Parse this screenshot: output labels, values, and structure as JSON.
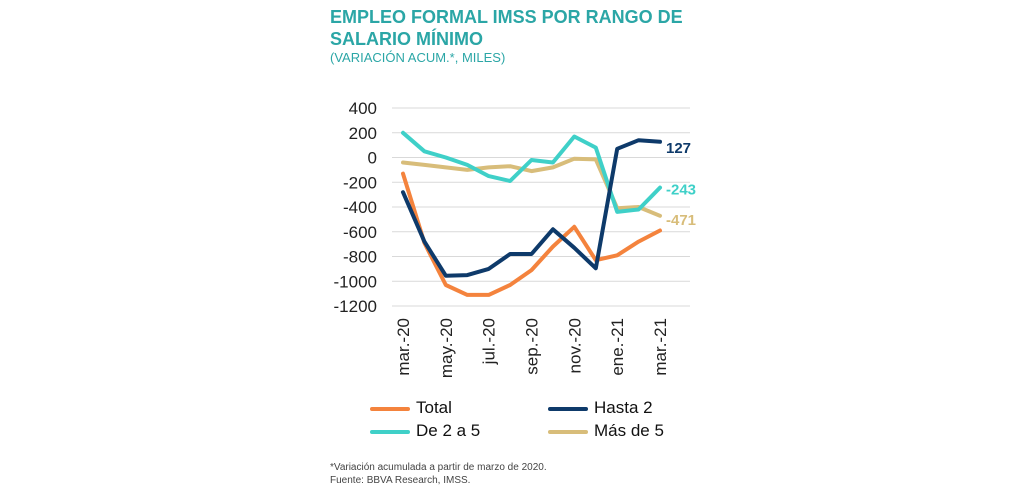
{
  "header": {
    "title": "EMPLEO FORMAL IMSS POR RANGO DE SALARIO MÍNIMO",
    "subtitle": "(VARIACIÓN ACUM.*, MILES)"
  },
  "footer": {
    "note": "*Variación acumulada a partir de marzo de 2020.",
    "source": "Fuente: BBVA Research, IMSS."
  },
  "chart_data": {
    "type": "line",
    "title": "EMPLEO FORMAL IMSS POR RANGO DE SALARIO MÍNIMO",
    "subtitle": "(VARIACIÓN ACUM.*, MILES)",
    "ylim": [
      -1200,
      400
    ],
    "yticks": [
      400,
      200,
      0,
      -200,
      -400,
      -600,
      -800,
      -1000,
      -1200
    ],
    "ytick_labels": [
      "400",
      "200",
      "0",
      "-200",
      "-400",
      "-600",
      "-800",
      "-1000",
      "-1200"
    ],
    "x": [
      "mar.-20",
      "abr.-20",
      "may.-20",
      "jun.-20",
      "jul.-20",
      "ago.-20",
      "sep.-20",
      "oct.-20",
      "nov.-20",
      "dic.-20",
      "ene.-21",
      "feb.-21",
      "mar.-21"
    ],
    "xtick_labels": [
      "mar.-20",
      "may.-20",
      "jul.-20",
      "sep.-20",
      "nov.-20",
      "ene.-21",
      "mar.-21"
    ],
    "grid": true,
    "legend_position": "bottom",
    "series": [
      {
        "name": "Total",
        "color": "#f4833d",
        "values": [
          -130,
          -690,
          -1030,
          -1110,
          -1110,
          -1030,
          -910,
          -720,
          -560,
          -830,
          -790,
          -680,
          -590
        ]
      },
      {
        "name": "Hasta 2",
        "color": "#0e3a6a",
        "values": [
          -280,
          -680,
          -955,
          -950,
          -900,
          -780,
          -780,
          -580,
          -730,
          -895,
          70,
          140,
          127
        ],
        "end_label": "127"
      },
      {
        "name": "De 2 a 5",
        "color": "#3fd0c8",
        "values": [
          200,
          50,
          0,
          -60,
          -150,
          -190,
          -20,
          -40,
          170,
          80,
          -440,
          -420,
          -243
        ],
        "end_label": "-243"
      },
      {
        "name": "Más de 5",
        "color": "#d8bd7a",
        "values": [
          -40,
          -60,
          -80,
          -100,
          -80,
          -70,
          -110,
          -80,
          -10,
          -15,
          -410,
          -400,
          -471
        ],
        "end_label": "-471"
      }
    ]
  }
}
